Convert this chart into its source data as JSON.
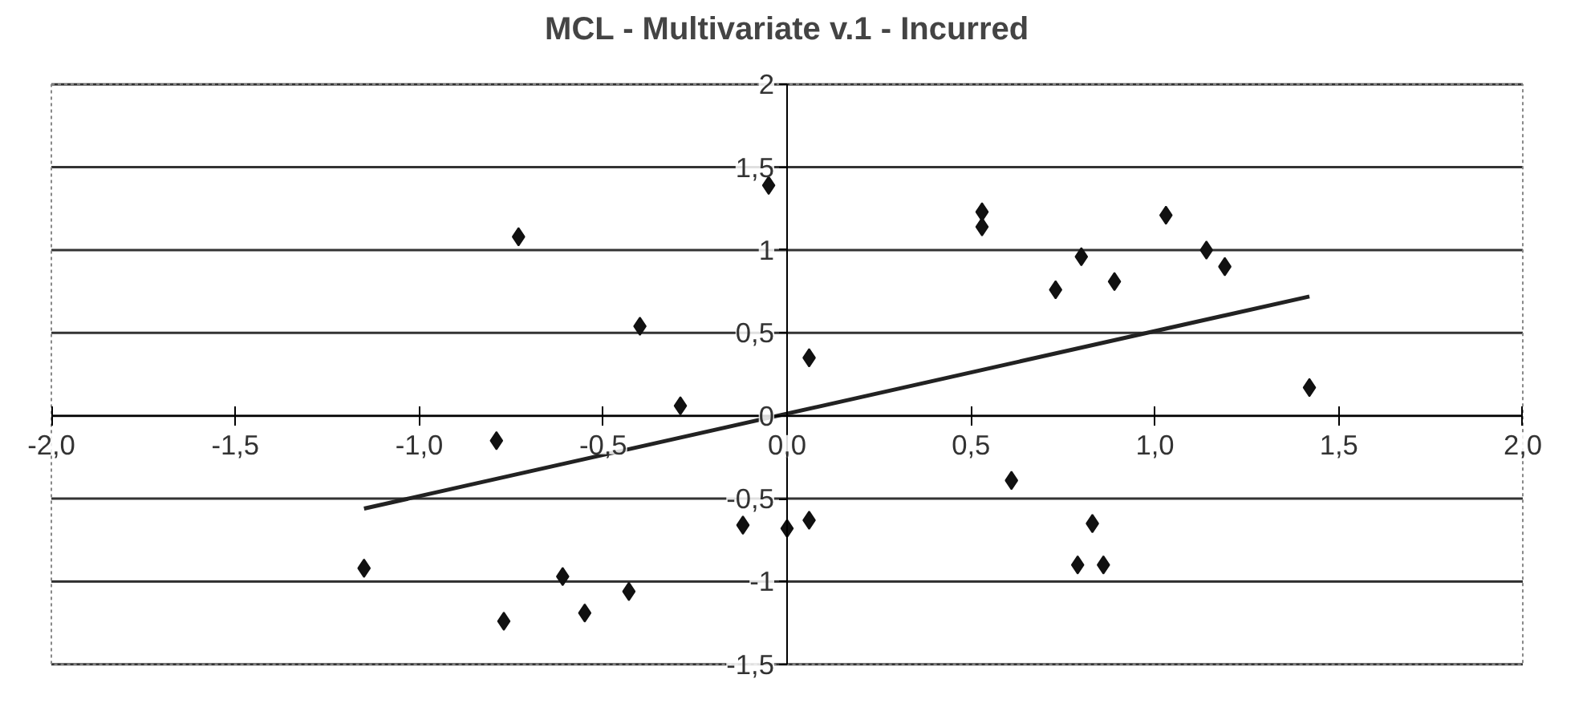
{
  "chart_data": {
    "type": "scatter",
    "title": "MCL - Multivariate v.1 - Incurred",
    "xlim": [
      -2,
      2
    ],
    "ylim": [
      -1.5,
      2
    ],
    "xticks": [
      {
        "value": -2,
        "label": "-2,0"
      },
      {
        "value": -1.5,
        "label": "-1,5"
      },
      {
        "value": -1,
        "label": "-1,0"
      },
      {
        "value": -0.5,
        "label": "-0,5"
      },
      {
        "value": 0,
        "label": "0,0"
      },
      {
        "value": 0.5,
        "label": "0,5"
      },
      {
        "value": 1,
        "label": "1,0"
      },
      {
        "value": 1.5,
        "label": "1,5"
      },
      {
        "value": 2,
        "label": "2,0"
      }
    ],
    "yticks": [
      {
        "value": -1.5,
        "label": "-1,5"
      },
      -1,
      {
        "value": -0.5,
        "label": "-0,5"
      },
      0,
      {
        "value": 0.5,
        "label": "0,5"
      },
      1,
      {
        "value": 1.5,
        "label": "1,5"
      },
      2
    ],
    "grid": "y",
    "marker": "diamond",
    "series": [
      {
        "color": "#111111",
        "x": [
          -0.05,
          -0.73,
          -0.4,
          -0.29,
          -0.79,
          -1.15,
          -0.77,
          -0.61,
          -0.55,
          -0.43,
          -0.12,
          0.0,
          0.06,
          0.06,
          0.53,
          0.53,
          0.61,
          0.73,
          0.8,
          0.89,
          1.03,
          1.14,
          1.19,
          1.42,
          0.83,
          0.79,
          0.86
        ],
        "values": [
          1.39,
          1.08,
          0.54,
          0.06,
          -0.15,
          -0.92,
          -1.24,
          -0.97,
          -1.19,
          -1.06,
          -0.66,
          -0.68,
          -0.63,
          0.35,
          1.23,
          1.14,
          -0.39,
          0.76,
          0.96,
          0.81,
          1.21,
          1.0,
          0.9,
          0.17,
          -0.65,
          -0.9,
          -0.9
        ]
      },
      {
        "type": "line",
        "marker": "none",
        "color": "#222222",
        "x": [
          -1.15,
          1.42
        ],
        "values": [
          -0.56,
          0.72
        ]
      }
    ]
  }
}
